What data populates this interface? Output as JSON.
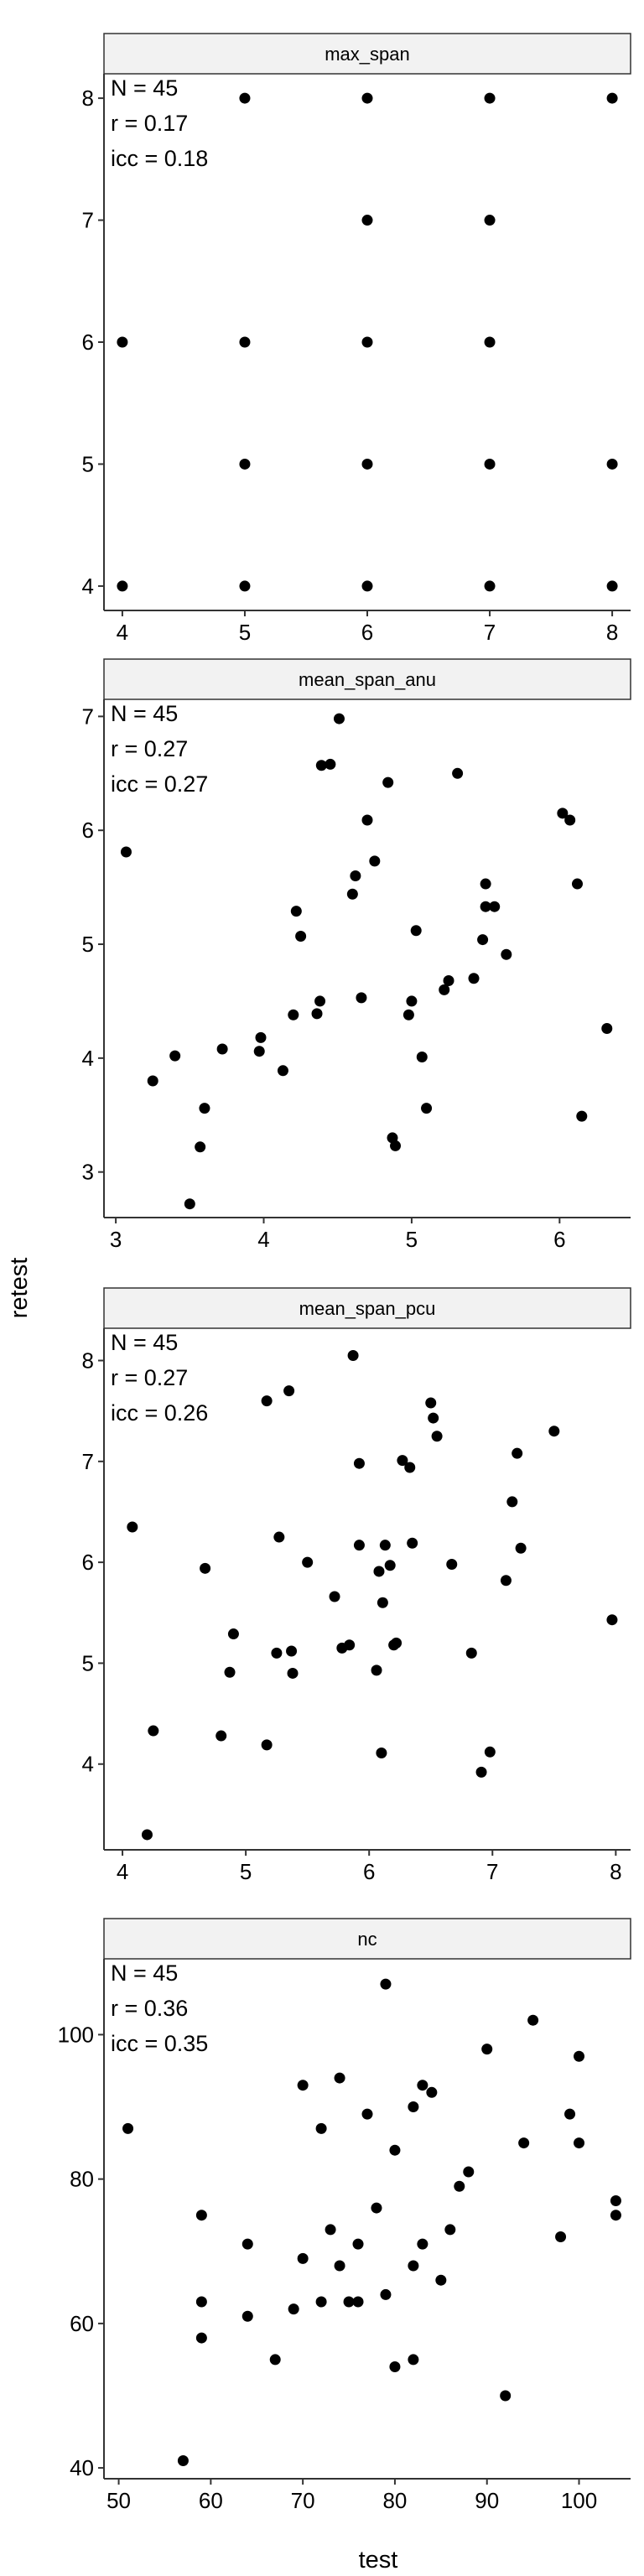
{
  "axis_titles": {
    "x": "test",
    "y": "retest"
  },
  "colors": {
    "point": "#000000",
    "strip_fill": "#f2f2f2",
    "strip_border": "#333333",
    "axis": "#333333",
    "background": "#ffffff"
  },
  "chart_data": [
    {
      "type": "scatter",
      "title": "max_span",
      "xlabel": "test",
      "ylabel": "retest",
      "xlim": [
        3.85,
        8.15
      ],
      "ylim": [
        3.8,
        8.2
      ],
      "xticks": [
        4,
        5,
        6,
        7,
        8
      ],
      "yticks": [
        4,
        5,
        6,
        7,
        8
      ],
      "grid": false,
      "stats": [
        "N = 45",
        "r = 0.17",
        "icc = 0.18"
      ],
      "points": [
        [
          5,
          8
        ],
        [
          6,
          8
        ],
        [
          7,
          8
        ],
        [
          8,
          8
        ],
        [
          6,
          7
        ],
        [
          7,
          7
        ],
        [
          4,
          6
        ],
        [
          5,
          6
        ],
        [
          6,
          6
        ],
        [
          7,
          6
        ],
        [
          5,
          5
        ],
        [
          6,
          5
        ],
        [
          7,
          5
        ],
        [
          8,
          5
        ],
        [
          4,
          4
        ],
        [
          5,
          4
        ],
        [
          6,
          4
        ],
        [
          7,
          4
        ],
        [
          8,
          4
        ]
      ]
    },
    {
      "type": "scatter",
      "title": "mean_span_anu",
      "xlabel": "test",
      "ylabel": "retest",
      "xlim": [
        2.92,
        6.48
      ],
      "ylim": [
        2.6,
        7.15
      ],
      "xticks": [
        3,
        4,
        5,
        6
      ],
      "yticks": [
        3,
        4,
        5,
        6,
        7
      ],
      "grid": false,
      "stats": [
        "N = 45",
        "r = 0.27",
        "icc = 0.27"
      ],
      "points": [
        [
          3.07,
          5.81
        ],
        [
          3.25,
          3.8
        ],
        [
          3.4,
          4.02
        ],
        [
          3.5,
          2.72
        ],
        [
          3.57,
          3.22
        ],
        [
          3.6,
          3.56
        ],
        [
          3.72,
          4.08
        ],
        [
          3.97,
          4.06
        ],
        [
          3.98,
          4.18
        ],
        [
          4.13,
          3.89
        ],
        [
          4.2,
          4.38
        ],
        [
          4.22,
          5.29
        ],
        [
          4.25,
          5.07
        ],
        [
          4.36,
          4.39
        ],
        [
          4.38,
          4.5
        ],
        [
          4.39,
          6.57
        ],
        [
          4.45,
          6.58
        ],
        [
          4.51,
          6.98
        ],
        [
          4.62,
          5.6
        ],
        [
          4.6,
          5.44
        ],
        [
          4.66,
          4.53
        ],
        [
          4.7,
          6.09
        ],
        [
          4.75,
          5.73
        ],
        [
          4.84,
          6.42
        ],
        [
          4.87,
          3.3
        ],
        [
          4.89,
          3.23
        ],
        [
          4.98,
          4.38
        ],
        [
          5.0,
          4.5
        ],
        [
          5.03,
          5.12
        ],
        [
          5.07,
          4.01
        ],
        [
          5.1,
          3.56
        ],
        [
          5.22,
          4.6
        ],
        [
          5.25,
          4.68
        ],
        [
          5.31,
          6.5
        ],
        [
          5.42,
          4.7
        ],
        [
          5.48,
          5.04
        ],
        [
          5.5,
          5.53
        ],
        [
          5.5,
          5.33
        ],
        [
          5.56,
          5.33
        ],
        [
          5.64,
          4.91
        ],
        [
          6.02,
          6.15
        ],
        [
          6.07,
          6.09
        ],
        [
          6.12,
          5.53
        ],
        [
          6.15,
          3.49
        ],
        [
          6.32,
          4.26
        ]
      ]
    },
    {
      "type": "scatter",
      "title": "mean_span_pcu",
      "xlabel": "test",
      "ylabel": "retest",
      "xlim": [
        3.85,
        8.12
      ],
      "ylim": [
        3.15,
        8.32
      ],
      "xticks": [
        4,
        5,
        6,
        7,
        8
      ],
      "yticks": [
        4,
        5,
        6,
        7,
        8
      ],
      "grid": false,
      "stats": [
        "N = 45",
        "r = 0.27",
        "icc = 0.26"
      ],
      "points": [
        [
          4.08,
          6.35
        ],
        [
          4.2,
          3.3
        ],
        [
          4.25,
          4.33
        ],
        [
          4.67,
          5.94
        ],
        [
          4.8,
          4.28
        ],
        [
          4.87,
          4.91
        ],
        [
          4.9,
          5.29
        ],
        [
          5.17,
          4.19
        ],
        [
          5.17,
          7.6
        ],
        [
          5.25,
          5.1
        ],
        [
          5.27,
          6.25
        ],
        [
          5.35,
          7.7
        ],
        [
          5.37,
          5.12
        ],
        [
          5.38,
          4.9
        ],
        [
          5.5,
          6.0
        ],
        [
          5.72,
          5.66
        ],
        [
          5.78,
          5.15
        ],
        [
          5.84,
          5.18
        ],
        [
          5.87,
          8.05
        ],
        [
          5.92,
          6.98
        ],
        [
          5.92,
          6.17
        ],
        [
          6.06,
          4.93
        ],
        [
          6.08,
          5.91
        ],
        [
          6.1,
          4.11
        ],
        [
          6.11,
          5.6
        ],
        [
          6.13,
          6.17
        ],
        [
          6.17,
          5.97
        ],
        [
          6.2,
          5.18
        ],
        [
          6.22,
          5.2
        ],
        [
          6.27,
          7.01
        ],
        [
          6.33,
          6.94
        ],
        [
          6.35,
          6.19
        ],
        [
          6.5,
          7.58
        ],
        [
          6.52,
          7.43
        ],
        [
          6.55,
          7.25
        ],
        [
          6.67,
          5.98
        ],
        [
          6.83,
          5.1
        ],
        [
          6.91,
          3.92
        ],
        [
          6.98,
          4.12
        ],
        [
          7.11,
          5.82
        ],
        [
          7.16,
          6.6
        ],
        [
          7.2,
          7.08
        ],
        [
          7.23,
          6.14
        ],
        [
          7.5,
          7.3
        ],
        [
          7.97,
          5.43
        ]
      ]
    },
    {
      "type": "scatter",
      "title": "nc",
      "xlabel": "test",
      "ylabel": "retest",
      "xlim": [
        48.4,
        105.6
      ],
      "ylim": [
        38.5,
        110.5
      ],
      "xticks": [
        50,
        60,
        70,
        80,
        90,
        100
      ],
      "yticks": [
        40,
        60,
        80,
        100
      ],
      "grid": false,
      "stats": [
        "N = 45",
        "r = 0.36",
        "icc = 0.35"
      ],
      "points": [
        [
          51,
          87
        ],
        [
          57,
          41
        ],
        [
          59,
          75
        ],
        [
          59,
          63
        ],
        [
          59,
          58
        ],
        [
          64,
          71
        ],
        [
          64,
          61
        ],
        [
          67,
          55
        ],
        [
          69,
          62
        ],
        [
          70,
          93
        ],
        [
          70,
          69
        ],
        [
          72,
          87
        ],
        [
          72,
          63
        ],
        [
          73,
          73
        ],
        [
          74,
          94
        ],
        [
          74,
          68
        ],
        [
          76,
          71
        ],
        [
          76,
          63
        ],
        [
          77,
          89
        ],
        [
          78,
          76
        ],
        [
          79,
          107
        ],
        [
          79,
          64
        ],
        [
          80,
          84
        ],
        [
          80,
          54
        ],
        [
          82,
          90
        ],
        [
          82,
          68
        ],
        [
          82,
          55
        ],
        [
          83,
          93
        ],
        [
          83,
          71
        ],
        [
          84,
          92
        ],
        [
          85,
          66
        ],
        [
          86,
          73
        ],
        [
          87,
          79
        ],
        [
          88,
          81
        ],
        [
          90,
          98
        ],
        [
          92,
          50
        ],
        [
          94,
          85
        ],
        [
          95,
          102
        ],
        [
          98,
          72
        ],
        [
          99,
          89
        ],
        [
          100,
          97
        ],
        [
          100,
          85
        ],
        [
          104,
          77
        ],
        [
          104,
          75
        ],
        [
          75,
          63
        ]
      ]
    }
  ]
}
